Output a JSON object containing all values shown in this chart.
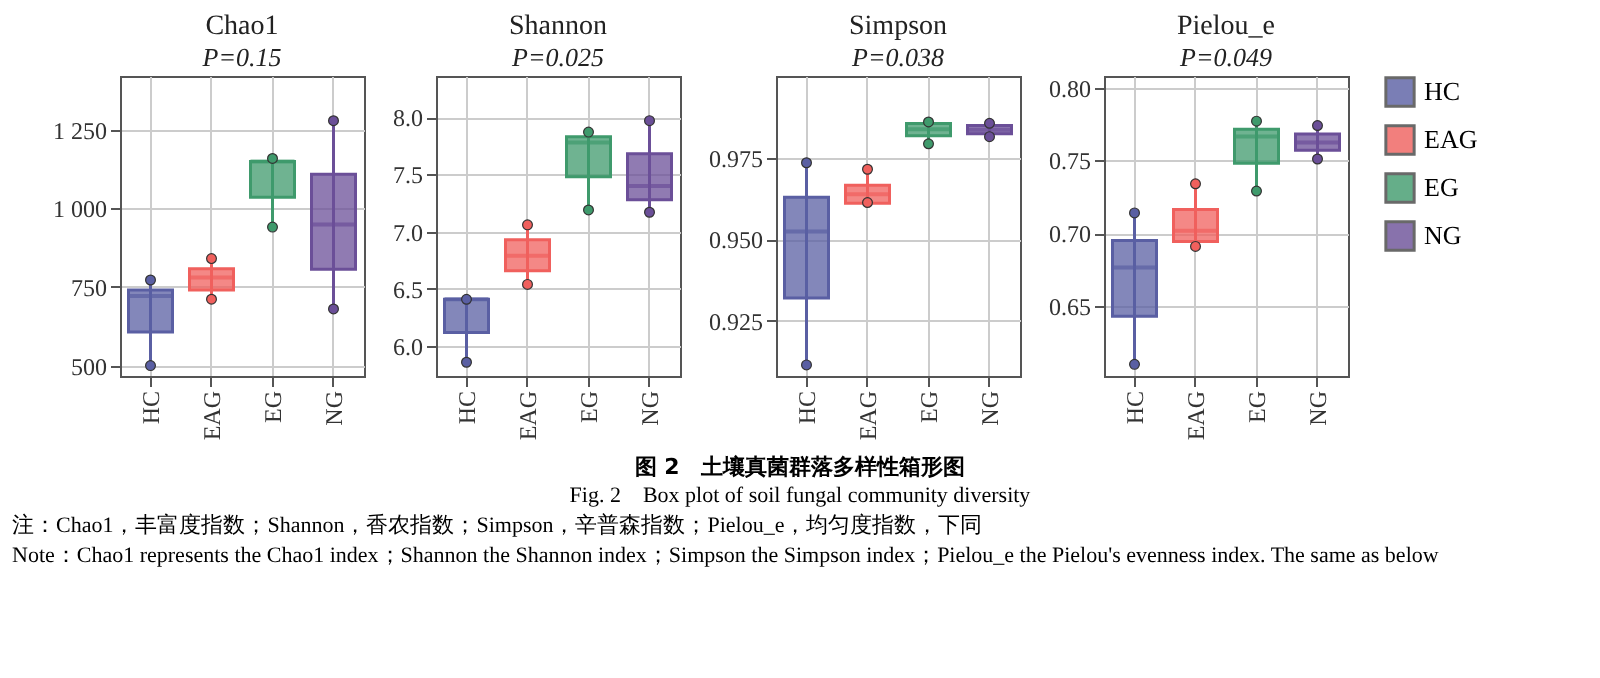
{
  "chart_data": [
    {
      "type": "box",
      "title": "Chao1",
      "subtitle": "P=0.15",
      "categories": [
        "HC",
        "EAG",
        "EG",
        "NG"
      ],
      "colors": [
        "#5a5fa3",
        "#f0605d",
        "#3f9a6c",
        "#6b4f98"
      ],
      "ylim": [
        467,
        1420
      ],
      "yticks": [
        500,
        750,
        {
          "value": 1000,
          "label": "1 000"
        },
        {
          "value": 1250,
          "label": "1 250"
        }
      ],
      "grid": true,
      "boxes": [
        {
          "low": 500,
          "q1": 607,
          "median": 721,
          "q3": 740,
          "high": 770
        },
        {
          "low": 711,
          "q1": 740,
          "median": 780,
          "q3": 808,
          "high": 840
        },
        {
          "low": 934,
          "q1": 1035,
          "median": 1148,
          "q3": 1148,
          "high": 1152
        },
        {
          "low": 670,
          "q1": 806,
          "median": 948,
          "q3": 1108,
          "high": 1269
        }
      ],
      "series": [
        {
          "type": "scatter",
          "color": "#5a5fa3",
          "x": [
            "HC",
            "HC"
          ],
          "values": [
            500,
            772
          ]
        },
        {
          "type": "scatter",
          "color": "#f0605d",
          "x": [
            "EAG",
            "EAG"
          ],
          "values": [
            711,
            840
          ]
        },
        {
          "type": "scatter",
          "color": "#3f9a6c",
          "x": [
            "EG",
            "EG"
          ],
          "values": [
            1158,
            940
          ]
        },
        {
          "type": "scatter",
          "color": "#6b4f98",
          "x": [
            "NG",
            "NG"
          ],
          "values": [
            1278,
            680
          ]
        }
      ],
      "annotations": [
        "图 2　土壤真菌群落多样性箱形图",
        "Fig. 2　Box plot of soil fungal community diversity",
        "注：Chao1，丰富度指数；Shannon，香农指数；Simpson，辛普森指数；Pielou_e，均匀度指数，下同",
        "Note：Chao1 represents the Chao1 index；Shannon the Shannon index；Simpson the Simpson index；Pielou_e the Pielou's evenness index. The same as below"
      ]
    },
    {
      "type": "box",
      "title": "Shannon",
      "subtitle": "P=0.025",
      "categories": [
        "HC",
        "EAG",
        "EG",
        "NG"
      ],
      "colors": [
        "#5a5fa3",
        "#f0605d",
        "#3f9a6c",
        "#6b4f98"
      ],
      "ylim": [
        5.74,
        8.36
      ],
      "yticks": [
        {
          "value": 6,
          "label": "6.0"
        },
        6.5,
        {
          "value": 7,
          "label": "7.0"
        },
        7.5,
        {
          "value": 8,
          "label": "8.0"
        }
      ],
      "grid": true,
      "boxes": [
        {
          "low": 5.86,
          "q1": 6.12,
          "median": 6.41,
          "q3": 6.41,
          "high": 6.41
        },
        {
          "low": 6.53,
          "q1": 6.66,
          "median": 6.79,
          "q3": 6.93,
          "high": 7.04
        },
        {
          "low": 7.19,
          "q1": 7.48,
          "median": 7.78,
          "q3": 7.83,
          "high": 7.88
        },
        {
          "low": 7.17,
          "q1": 7.28,
          "median": 7.4,
          "q3": 7.68,
          "high": 7.95
        }
      ],
      "series": [
        {
          "type": "scatter",
          "color": "#5a5fa3",
          "x": [
            "HC",
            "HC"
          ],
          "values": [
            5.86,
            6.41
          ]
        },
        {
          "type": "scatter",
          "color": "#f0605d",
          "x": [
            "EAG",
            "EAG"
          ],
          "values": [
            7.06,
            6.54
          ]
        },
        {
          "type": "scatter",
          "color": "#3f9a6c",
          "x": [
            "EG",
            "EG"
          ],
          "values": [
            7.87,
            7.19
          ]
        },
        {
          "type": "scatter",
          "color": "#6b4f98",
          "x": [
            "NG",
            "NG"
          ],
          "values": [
            7.97,
            7.17
          ]
        }
      ]
    },
    {
      "type": "box",
      "title": "Simpson",
      "subtitle": "P=0.038",
      "categories": [
        "HC",
        "EAG",
        "EG",
        "NG"
      ],
      "colors": [
        "#5a5fa3",
        "#f0605d",
        "#3f9a6c",
        "#6b4f98"
      ],
      "ylim": [
        0.908,
        1.0
      ],
      "yticks": [
        0.925,
        {
          "value": 0.95,
          "label": "0.950"
        },
        0.975
      ],
      "grid": true,
      "boxes": [
        {
          "low": 0.9114,
          "q1": 0.9319,
          "median": 0.9523,
          "q3": 0.9628,
          "high": 0.9732
        },
        {
          "low": 0.961,
          "q1": 0.961,
          "median": 0.9637,
          "q3": 0.9665,
          "high": 0.9714
        },
        {
          "low": 0.9792,
          "q1": 0.9817,
          "median": 0.9837,
          "q3": 0.9854,
          "high": 0.9859
        },
        {
          "low": 0.9814,
          "q1": 0.9823,
          "median": 0.9835,
          "q3": 0.9848,
          "high": 0.9855
        }
      ],
      "series": [
        {
          "type": "scatter",
          "color": "#5a5fa3",
          "x": [
            "HC",
            "HC"
          ],
          "values": [
            0.9734,
            0.9114
          ]
        },
        {
          "type": "scatter",
          "color": "#f0605d",
          "x": [
            "EAG",
            "EAG"
          ],
          "values": [
            0.9714,
            0.9612
          ]
        },
        {
          "type": "scatter",
          "color": "#3f9a6c",
          "x": [
            "EG",
            "EG"
          ],
          "values": [
            0.9859,
            0.9792
          ]
        },
        {
          "type": "scatter",
          "color": "#6b4f98",
          "x": [
            "NG",
            "NG"
          ],
          "values": [
            0.9855,
            0.9814
          ]
        }
      ]
    },
    {
      "type": "box",
      "title": "Pielou_e",
      "subtitle": "P=0.049",
      "categories": [
        "HC",
        "EAG",
        "EG",
        "NG"
      ],
      "colors": [
        "#5a5fa3",
        "#f0605d",
        "#3f9a6c",
        "#6b4f98"
      ],
      "ylim": [
        0.602,
        0.808
      ],
      "yticks": [
        0.65,
        {
          "value": 0.7,
          "label": "0.70"
        },
        0.75,
        {
          "value": 0.8,
          "label": "0.80"
        }
      ],
      "grid": true,
      "legend": "right",
      "boxes": [
        {
          "low": 0.61,
          "q1": 0.643,
          "median": 0.6765,
          "q3": 0.695,
          "high": 0.713
        },
        {
          "low": 0.6943,
          "q1": 0.6943,
          "median": 0.7018,
          "q3": 0.7164,
          "high": 0.734
        },
        {
          "low": 0.729,
          "q1": 0.7481,
          "median": 0.7665,
          "q3": 0.7714,
          "high": 0.777
        },
        {
          "low": 0.7509,
          "q1": 0.7571,
          "median": 0.7624,
          "q3": 0.7681,
          "high": 0.7738
        }
      ],
      "series": [
        {
          "name": "HC",
          "type": "scatter",
          "color": "#5a5fa3",
          "x": [
            "HC",
            "HC"
          ],
          "values": [
            0.714,
            0.61
          ]
        },
        {
          "name": "EAG",
          "type": "scatter",
          "color": "#f0605d",
          "x": [
            "EAG",
            "EAG"
          ],
          "values": [
            0.734,
            0.691
          ]
        },
        {
          "name": "EG",
          "type": "scatter",
          "color": "#3f9a6c",
          "x": [
            "EG",
            "EG"
          ],
          "values": [
            0.777,
            0.729
          ]
        },
        {
          "name": "NG",
          "type": "scatter",
          "color": "#6b4f98",
          "x": [
            "NG",
            "NG"
          ],
          "values": [
            0.774,
            0.751
          ]
        }
      ]
    }
  ]
}
